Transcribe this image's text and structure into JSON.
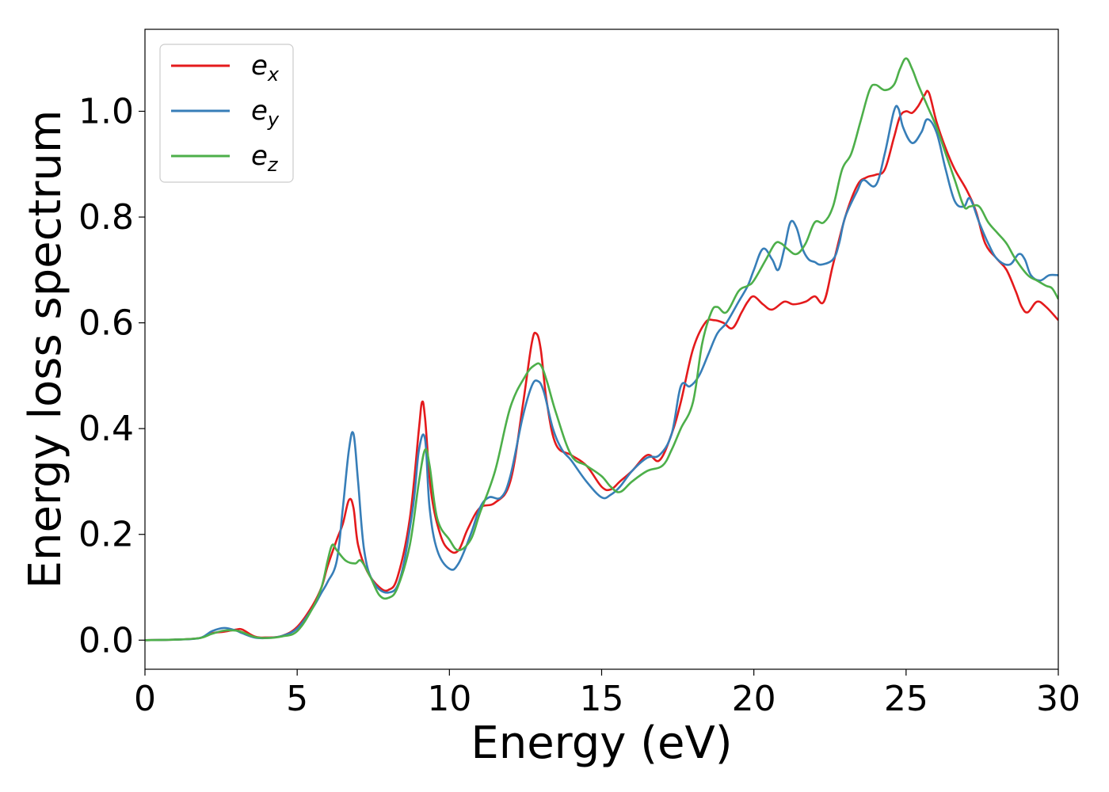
{
  "chart_data": {
    "type": "line",
    "xlabel": "Energy (eV)",
    "ylabel": "Energy loss spectrum",
    "xlim": [
      0,
      30
    ],
    "ylim": [
      -0.055,
      1.155
    ],
    "xticks": [
      0,
      5,
      10,
      15,
      20,
      25,
      30
    ],
    "xtick_labels": [
      "0",
      "5",
      "10",
      "15",
      "20",
      "25",
      "30"
    ],
    "yticks": [
      0.0,
      0.2,
      0.4,
      0.6,
      0.8,
      1.0
    ],
    "ytick_labels": [
      "0.0",
      "0.2",
      "0.4",
      "0.6",
      "0.8",
      "1.0"
    ],
    "grid": false,
    "legend_position": "top-left",
    "series": [
      {
        "name": "e_x",
        "label_base": "e",
        "label_sub": "x",
        "color": "#e41a1c",
        "x": [
          0,
          1,
          1.8,
          2.2,
          2.6,
          3.0,
          3.2,
          3.6,
          4.0,
          4.5,
          5.0,
          5.5,
          5.8,
          6.0,
          6.3,
          6.5,
          6.7,
          6.85,
          7.0,
          7.3,
          7.7,
          8.0,
          8.3,
          8.7,
          9.0,
          9.1,
          9.2,
          9.4,
          9.7,
          10.0,
          10.3,
          10.6,
          11.0,
          11.5,
          12.0,
          12.4,
          12.7,
          12.85,
          13.0,
          13.2,
          13.5,
          14.0,
          14.5,
          15.0,
          15.3,
          15.6,
          16.0,
          16.5,
          16.9,
          17.3,
          17.6,
          18.0,
          18.4,
          18.7,
          19.0,
          19.3,
          19.6,
          19.8,
          20.0,
          20.3,
          20.6,
          21.0,
          21.3,
          21.7,
          22.0,
          22.3,
          22.6,
          23.0,
          23.4,
          23.7,
          24.0,
          24.3,
          24.6,
          24.8,
          25.0,
          25.2,
          25.4,
          25.6,
          25.75,
          26.0,
          26.3,
          26.6,
          27.0,
          27.3,
          27.6,
          28.0,
          28.3,
          28.6,
          28.8,
          29.0,
          29.3,
          29.6,
          30.0
        ],
        "y": [
          0,
          0.001,
          0.004,
          0.013,
          0.016,
          0.02,
          0.02,
          0.007,
          0.005,
          0.008,
          0.025,
          0.065,
          0.1,
          0.14,
          0.19,
          0.22,
          0.265,
          0.25,
          0.18,
          0.13,
          0.1,
          0.095,
          0.12,
          0.23,
          0.4,
          0.45,
          0.42,
          0.28,
          0.2,
          0.17,
          0.17,
          0.21,
          0.25,
          0.26,
          0.3,
          0.44,
          0.56,
          0.58,
          0.55,
          0.45,
          0.37,
          0.35,
          0.33,
          0.29,
          0.285,
          0.3,
          0.32,
          0.35,
          0.34,
          0.39,
          0.45,
          0.55,
          0.6,
          0.605,
          0.6,
          0.59,
          0.62,
          0.64,
          0.65,
          0.635,
          0.625,
          0.64,
          0.635,
          0.64,
          0.65,
          0.64,
          0.71,
          0.8,
          0.86,
          0.875,
          0.88,
          0.89,
          0.95,
          0.99,
          1.0,
          0.997,
          1.01,
          1.03,
          1.035,
          0.98,
          0.93,
          0.89,
          0.85,
          0.81,
          0.75,
          0.72,
          0.7,
          0.66,
          0.63,
          0.62,
          0.64,
          0.63,
          0.605
        ]
      },
      {
        "name": "e_y",
        "label_base": "e",
        "label_sub": "y",
        "color": "#377eb8",
        "x": [
          0,
          1,
          1.8,
          2.2,
          2.6,
          3.0,
          3.2,
          3.6,
          4.0,
          4.5,
          5.0,
          5.5,
          5.8,
          6.0,
          6.3,
          6.5,
          6.7,
          6.85,
          7.0,
          7.2,
          7.5,
          8.0,
          8.4,
          8.8,
          9.0,
          9.2,
          9.35,
          9.6,
          10.0,
          10.3,
          10.7,
          11.0,
          11.3,
          11.7,
          12.0,
          12.4,
          12.7,
          12.9,
          13.1,
          13.4,
          13.7,
          14.0,
          14.5,
          15.0,
          15.3,
          15.6,
          16.0,
          16.5,
          16.9,
          17.3,
          17.6,
          17.9,
          18.2,
          18.5,
          18.8,
          19.1,
          19.5,
          19.8,
          20.0,
          20.3,
          20.6,
          20.8,
          21.0,
          21.2,
          21.4,
          21.6,
          21.8,
          22.0,
          22.2,
          22.6,
          22.8,
          23.0,
          23.4,
          23.6,
          24.0,
          24.3,
          24.6,
          24.75,
          24.9,
          25.2,
          25.5,
          25.7,
          26.0,
          26.3,
          26.6,
          26.9,
          27.1,
          27.4,
          27.7,
          28.0,
          28.4,
          28.7,
          28.9,
          29.1,
          29.4,
          29.7,
          30.0
        ],
        "y": [
          0,
          0.001,
          0.004,
          0.017,
          0.023,
          0.018,
          0.013,
          0.005,
          0.004,
          0.008,
          0.022,
          0.06,
          0.09,
          0.11,
          0.15,
          0.25,
          0.36,
          0.39,
          0.3,
          0.17,
          0.11,
          0.09,
          0.12,
          0.25,
          0.36,
          0.38,
          0.25,
          0.17,
          0.135,
          0.145,
          0.2,
          0.25,
          0.27,
          0.27,
          0.31,
          0.42,
          0.48,
          0.49,
          0.47,
          0.4,
          0.36,
          0.34,
          0.3,
          0.27,
          0.275,
          0.29,
          0.32,
          0.345,
          0.35,
          0.39,
          0.48,
          0.48,
          0.5,
          0.54,
          0.58,
          0.6,
          0.64,
          0.67,
          0.7,
          0.74,
          0.72,
          0.7,
          0.74,
          0.79,
          0.78,
          0.74,
          0.72,
          0.715,
          0.71,
          0.72,
          0.75,
          0.8,
          0.85,
          0.87,
          0.86,
          0.92,
          1.0,
          1.005,
          0.97,
          0.94,
          0.96,
          0.985,
          0.96,
          0.89,
          0.83,
          0.82,
          0.835,
          0.79,
          0.75,
          0.72,
          0.71,
          0.73,
          0.72,
          0.69,
          0.68,
          0.69,
          0.69
        ]
      },
      {
        "name": "e_z",
        "label_base": "e",
        "label_sub": "z",
        "color": "#4daf4a",
        "x": [
          0,
          1,
          1.8,
          2.2,
          2.6,
          3.0,
          3.2,
          3.6,
          4.0,
          4.5,
          5.0,
          5.5,
          5.8,
          6.0,
          6.15,
          6.3,
          6.6,
          6.9,
          7.1,
          7.4,
          7.7,
          8.0,
          8.3,
          8.7,
          9.0,
          9.2,
          9.35,
          9.6,
          10.0,
          10.3,
          10.7,
          11.0,
          11.5,
          12.0,
          12.5,
          12.8,
          13.0,
          13.2,
          13.5,
          14.0,
          14.5,
          15.0,
          15.3,
          15.6,
          16.0,
          16.5,
          17.0,
          17.3,
          17.6,
          18.0,
          18.3,
          18.6,
          18.8,
          19.1,
          19.5,
          19.8,
          20.0,
          20.4,
          20.7,
          20.9,
          21.1,
          21.4,
          21.7,
          22.0,
          22.3,
          22.6,
          22.9,
          23.2,
          23.5,
          23.8,
          24.0,
          24.3,
          24.6,
          24.8,
          25.0,
          25.2,
          25.4,
          25.7,
          26.0,
          26.3,
          26.6,
          26.9,
          27.1,
          27.4,
          27.7,
          28.0,
          28.3,
          28.6,
          29.0,
          29.3,
          29.6,
          29.8,
          30.0
        ],
        "y": [
          0,
          0.001,
          0.004,
          0.012,
          0.018,
          0.018,
          0.015,
          0.006,
          0.004,
          0.007,
          0.017,
          0.06,
          0.1,
          0.15,
          0.18,
          0.17,
          0.15,
          0.145,
          0.15,
          0.12,
          0.085,
          0.08,
          0.1,
          0.18,
          0.3,
          0.36,
          0.33,
          0.23,
          0.19,
          0.17,
          0.19,
          0.24,
          0.32,
          0.44,
          0.5,
          0.52,
          0.52,
          0.49,
          0.43,
          0.35,
          0.33,
          0.31,
          0.29,
          0.28,
          0.3,
          0.32,
          0.33,
          0.36,
          0.4,
          0.45,
          0.56,
          0.62,
          0.63,
          0.62,
          0.66,
          0.67,
          0.68,
          0.72,
          0.75,
          0.75,
          0.74,
          0.73,
          0.75,
          0.79,
          0.79,
          0.82,
          0.89,
          0.92,
          0.98,
          1.04,
          1.05,
          1.04,
          1.05,
          1.08,
          1.1,
          1.08,
          1.05,
          1.01,
          0.97,
          0.92,
          0.87,
          0.82,
          0.82,
          0.82,
          0.79,
          0.77,
          0.75,
          0.72,
          0.69,
          0.68,
          0.67,
          0.665,
          0.645
        ]
      }
    ]
  }
}
